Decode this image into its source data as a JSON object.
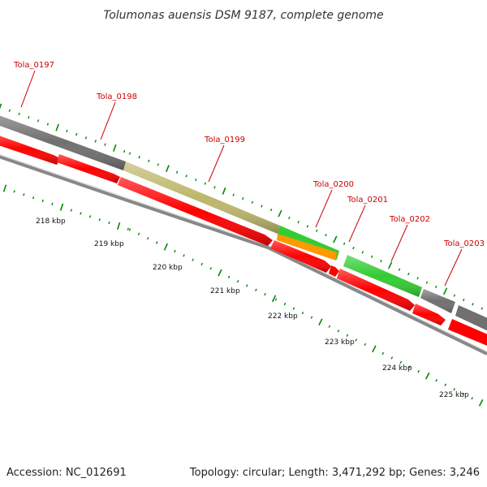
{
  "title": "Tolumonas auensis DSM 9187, complete genome",
  "footer": {
    "accession": "Accession: NC_012691",
    "info": "Topology: circular; Length: 3,471,292 bp; Genes: 3,246"
  },
  "colors": {
    "cds_red": "#ff0000",
    "gene_gray": "#707070",
    "gene_olive": "#bdb76b",
    "gene_green": "#33cc33",
    "gene_orange": "#ff9900",
    "label_red": "#cc0000",
    "tick_green": "#008800",
    "backbone": "#888888"
  },
  "gene_labels": [
    {
      "id": "tola-0197",
      "text": "Tola_0197"
    },
    {
      "id": "tola-0198",
      "text": "Tola_0198"
    },
    {
      "id": "tola-0199",
      "text": "Tola_0199"
    },
    {
      "id": "tola-0200",
      "text": "Tola_0200"
    },
    {
      "id": "tola-0201",
      "text": "Tola_0201"
    },
    {
      "id": "tola-0202",
      "text": "Tola_0202"
    },
    {
      "id": "tola-0203",
      "text": "Tola_0203"
    }
  ],
  "kbp_labels": [
    "218 kbp",
    "219 kbp",
    "220 kbp",
    "221 kbp",
    "222 kbp",
    "223 kbp",
    "224 kbp",
    "225 kbp"
  ]
}
